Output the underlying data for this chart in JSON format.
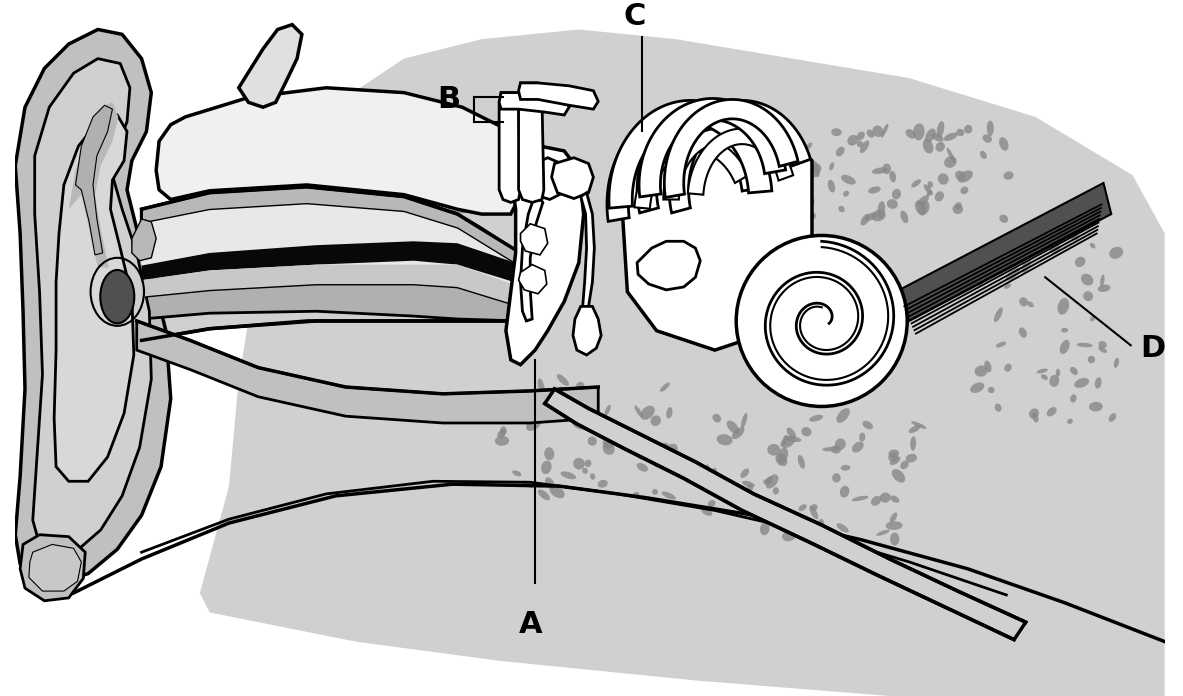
{
  "bg_color": "#ffffff",
  "label_A": "A",
  "label_B": "B",
  "label_C": "C",
  "label_D": "D",
  "label_fontsize": 22,
  "label_fontweight": "bold",
  "gray_skull": "#c8c8c8",
  "gray_light": "#d8d8d8",
  "gray_med": "#a8a8a8",
  "gray_dark": "#707070",
  "gray_canal": "#b0b0b0",
  "gray_pinna_outer": "#b8b8b8",
  "gray_pinna_inner": "#c8c8c8",
  "gray_bone_speckle": "#909090",
  "black": "#000000",
  "white": "#ffffff",
  "gray_ear_dark": "#555555",
  "gray_black_stripe": "#101010"
}
